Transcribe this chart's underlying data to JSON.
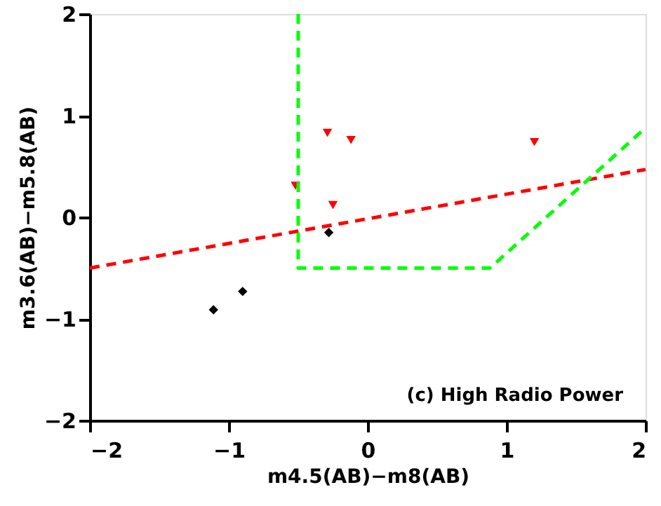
{
  "chart_data": {
    "type": "scatter",
    "xlabel": "m4.5(AB)−m8(AB)",
    "ylabel": "m3.6(AB)−m5.8(AB)",
    "xlim": [
      -2,
      2
    ],
    "ylim": [
      -2,
      2
    ],
    "xticks": [
      -2,
      -1,
      0,
      1,
      2
    ],
    "yticks": [
      -2,
      -1,
      0,
      1,
      2
    ],
    "grid": false,
    "annotations": [
      "(c) High Radio Power"
    ],
    "series": [
      {
        "marker": "triangle",
        "color": "#ff0000",
        "x": [
          -0.52,
          -0.29,
          -0.12,
          -0.25,
          1.2
        ],
        "values": [
          0.31,
          0.83,
          0.76,
          0.12,
          0.74
        ]
      },
      {
        "marker": "diamond",
        "color": "#000000",
        "x": [
          -1.11,
          -0.9,
          -0.28
        ],
        "values": [
          -0.91,
          -0.73,
          -0.15
        ]
      },
      {
        "type": "line",
        "line_style": "dashed",
        "color": "#ff0000",
        "x": [
          -2,
          2
        ],
        "values": [
          -0.5,
          0.47
        ]
      },
      {
        "type": "line",
        "line_style": "dashed",
        "color": "#00ff00",
        "x": [
          -0.5,
          -0.5,
          0.88,
          2
        ],
        "values": [
          2,
          -0.5,
          -0.5,
          0.88
        ]
      }
    ]
  }
}
